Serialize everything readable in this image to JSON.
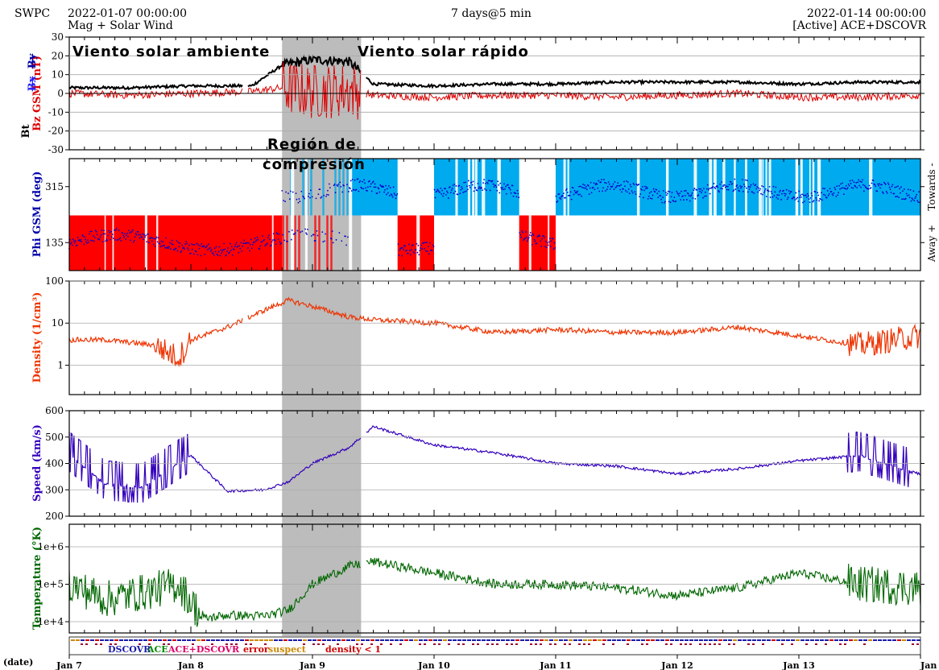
{
  "header": {
    "source": "SWPC",
    "start_time": "2022-01-07 00:00:00",
    "product": "Mag + Solar Wind",
    "span": "7 days@5 min",
    "end_time": "2022-01-14 00:00:00",
    "spacecraft": "[Active] ACE+DSCOVR"
  },
  "annotations": {
    "ambient": "Viento  solar  ambiente",
    "fast": "Viento  solar  rápido",
    "compression_line1": "Región  de",
    "compression_line2": "compresión"
  },
  "colors": {
    "bt": "#000000",
    "bz": "#dd0000",
    "bx": "#2020ff",
    "by": "#0000aa",
    "phi_towards": "#00aaee",
    "phi_away": "#ff0000",
    "phi_points": "#0000cc",
    "density": "#ee3300",
    "speed": "#3300bb",
    "temperature": "#006600",
    "compression_shade": "#b0b0b0"
  },
  "chart_data": [
    {
      "type": "line",
      "panel": "mag",
      "ylabel_parts": [
        "Bt",
        "Bz GSM (nT)",
        "Bx",
        "By"
      ],
      "ylim": [
        -30,
        30
      ],
      "yticks": [
        "30",
        "20",
        "10",
        "0",
        "-10",
        "-20",
        "-30"
      ],
      "x_days": [
        0,
        0.5,
        1.0,
        1.5,
        1.75,
        2.0,
        2.3,
        2.5,
        3.0,
        3.5,
        4.0,
        4.5,
        5.0,
        5.5,
        6.0,
        6.5,
        7.0
      ],
      "series": [
        {
          "name": "Bt",
          "values": [
            3,
            3,
            4,
            4,
            15,
            18,
            17,
            5,
            4,
            5,
            5,
            6,
            6,
            6,
            5,
            6,
            6
          ]
        },
        {
          "name": "Bz",
          "values": [
            0,
            -1,
            0,
            1,
            3,
            1,
            2,
            -1,
            -2,
            -1,
            -1,
            -2,
            -1,
            0,
            -2,
            -2,
            -1
          ]
        }
      ]
    },
    {
      "type": "scatter",
      "panel": "phi",
      "ylabel": "Phi GSM (deg)",
      "ylim": [
        45,
        405
      ],
      "yticks": [
        "315",
        "135"
      ],
      "side_labels": [
        "Towards -",
        "Away +"
      ],
      "sector_segments": [
        {
          "start_day": 0.0,
          "end_day": 1.75,
          "sector": "away"
        },
        {
          "start_day": 1.75,
          "end_day": 2.3,
          "sector": "mixed"
        },
        {
          "start_day": 2.3,
          "end_day": 2.7,
          "sector": "towards"
        },
        {
          "start_day": 2.7,
          "end_day": 3.0,
          "sector": "away"
        },
        {
          "start_day": 3.0,
          "end_day": 3.7,
          "sector": "towards"
        },
        {
          "start_day": 3.7,
          "end_day": 4.0,
          "sector": "away"
        },
        {
          "start_day": 4.0,
          "end_day": 7.0,
          "sector": "towards"
        }
      ]
    },
    {
      "type": "line",
      "panel": "density",
      "ylabel": "Density (1/cm³)",
      "yscale": "log",
      "ylim": [
        0.2,
        100
      ],
      "yticks": [
        "100",
        "10",
        "1"
      ],
      "x_days": [
        0,
        0.3,
        0.7,
        0.9,
        1.0,
        1.3,
        1.6,
        1.8,
        2.0,
        2.3,
        2.5,
        3.0,
        3.5,
        4.0,
        4.5,
        5.0,
        5.5,
        6.0,
        6.5,
        7.0
      ],
      "values": [
        4,
        4,
        3,
        1.5,
        4,
        8,
        20,
        35,
        25,
        14,
        12,
        10,
        6,
        7,
        6,
        6,
        8,
        5,
        3,
        5
      ]
    },
    {
      "type": "line",
      "panel": "speed",
      "ylabel": "Speed (km/s)",
      "ylim": [
        200,
        600
      ],
      "yticks": [
        "600",
        "500",
        "400",
        "300",
        "200"
      ],
      "x_days": [
        0,
        0.3,
        0.6,
        1.0,
        1.3,
        1.6,
        1.8,
        2.0,
        2.3,
        2.5,
        3.0,
        3.5,
        4.0,
        4.5,
        5.0,
        5.5,
        6.0,
        6.5,
        6.9,
        7.0
      ],
      "values": [
        430,
        320,
        310,
        430,
        295,
        300,
        330,
        400,
        460,
        540,
        470,
        440,
        400,
        390,
        360,
        380,
        410,
        430,
        370,
        360
      ]
    },
    {
      "type": "line",
      "panel": "temperature",
      "ylabel": "Temperature (°K)",
      "yscale": "log",
      "ylim": [
        5000,
        4000000
      ],
      "yticks": [
        "1e+6",
        "1e+5",
        "1e+4"
      ],
      "x_days": [
        0,
        0.3,
        0.6,
        0.9,
        1.1,
        1.3,
        1.6,
        1.8,
        2.0,
        2.3,
        2.5,
        3.0,
        3.5,
        4.0,
        4.5,
        5.0,
        5.5,
        6.0,
        6.5,
        7.0
      ],
      "values": [
        100000,
        40000,
        60000,
        100000,
        12000,
        15000,
        14000,
        20000,
        100000,
        300000,
        400000,
        200000,
        100000,
        100000,
        80000,
        50000,
        80000,
        200000,
        100000,
        80000
      ]
    }
  ],
  "x_axis": {
    "corner_label": "(date)",
    "ticks": [
      "Jan 7",
      "Jan 8",
      "Jan 9",
      "Jan 10",
      "Jan 11",
      "Jan 12",
      "Jan 13",
      "Jan 14"
    ]
  },
  "legend": {
    "dscovr": "DSCOVR",
    "ace": "ACE",
    "ace_dscovr": "ACE+DSCOVR",
    "error": "error",
    "suspect": "suspect",
    "density_low": "density < 1"
  },
  "compression_region": {
    "start_day": 1.75,
    "end_day": 2.4
  }
}
